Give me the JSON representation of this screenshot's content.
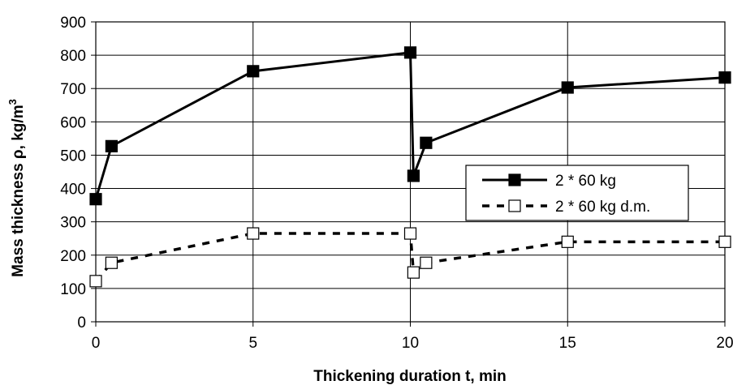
{
  "chart_data": {
    "type": "line",
    "title": "",
    "xlabel": "Thickening duration t, min",
    "ylabel_main": "Mass thickness ρ, kg/m",
    "ylabel_sup": "3",
    "xlim": [
      0,
      20
    ],
    "ylim": [
      0,
      900
    ],
    "xticks": [
      "0",
      "5",
      "10",
      "15",
      "20"
    ],
    "yticks": [
      "0",
      "100",
      "200",
      "300",
      "400",
      "500",
      "600",
      "700",
      "800",
      "900"
    ],
    "grid": true,
    "legend_position": "right",
    "series": [
      {
        "name": "2 * 60 kg",
        "style": "solid",
        "marker": "filled-square",
        "color": "#000000",
        "x": [
          0,
          0.5,
          5,
          10,
          10.1,
          10.5,
          15,
          20
        ],
        "y": [
          368,
          527,
          752,
          808,
          438,
          537,
          703,
          733
        ]
      },
      {
        "name": "2 * 60 kg d.m.",
        "style": "dashed",
        "marker": "open-square",
        "color": "#000000",
        "x": [
          0,
          0.5,
          5,
          10,
          10.1,
          10.5,
          15,
          20
        ],
        "y": [
          122,
          177,
          265,
          265,
          148,
          177,
          240,
          240
        ]
      }
    ]
  }
}
